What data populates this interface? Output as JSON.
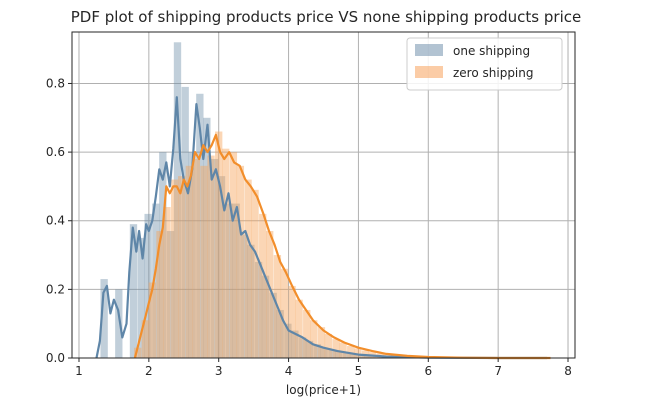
{
  "chart_data": {
    "type": "histogram",
    "title": "PDF plot of shipping products price VS none shipping products price",
    "xlabel": "log(price+1)",
    "ylabel": "",
    "xlim": [
      0.9,
      8.1
    ],
    "ylim": [
      0,
      0.95
    ],
    "x_ticks": [
      {
        "value": 1,
        "label": "1"
      },
      {
        "value": 2,
        "label": "2"
      },
      {
        "value": 3,
        "label": "3"
      },
      {
        "value": 4,
        "label": "4"
      },
      {
        "value": 5,
        "label": "5"
      },
      {
        "value": 6,
        "label": "6"
      },
      {
        "value": 7,
        "label": "7"
      },
      {
        "value": 8,
        "label": "8"
      }
    ],
    "y_ticks": [
      {
        "value": 0.0,
        "label": "0.0"
      },
      {
        "value": 0.2,
        "label": "0.2"
      },
      {
        "value": 0.4,
        "label": "0.4"
      },
      {
        "value": 0.6,
        "label": "0.6"
      },
      {
        "value": 0.8,
        "label": "0.8"
      }
    ],
    "grid": true,
    "legend_position": "top-right",
    "bin_width": 0.105,
    "series": [
      {
        "name": "one shipping",
        "color": "#6c8ca8",
        "fill_opacity": 0.42,
        "kde_color": "#5f86a8",
        "bins": [
          [
            1.36,
            0.23
          ],
          [
            1.47,
            0.0
          ],
          [
            1.57,
            0.2
          ],
          [
            1.67,
            0.0
          ],
          [
            1.78,
            0.39
          ],
          [
            1.89,
            0.35
          ],
          [
            1.99,
            0.42
          ],
          [
            2.1,
            0.45
          ],
          [
            2.2,
            0.6
          ],
          [
            2.31,
            0.37
          ],
          [
            2.41,
            0.92
          ],
          [
            2.52,
            0.79
          ],
          [
            2.62,
            0.6
          ],
          [
            2.73,
            0.77
          ],
          [
            2.83,
            0.7
          ],
          [
            2.94,
            0.58
          ],
          [
            3.04,
            0.53
          ],
          [
            3.15,
            0.45
          ],
          [
            3.25,
            0.45
          ],
          [
            3.36,
            0.36
          ],
          [
            3.46,
            0.33
          ],
          [
            3.57,
            0.28
          ],
          [
            3.67,
            0.24
          ],
          [
            3.78,
            0.19
          ],
          [
            3.88,
            0.14
          ],
          [
            3.99,
            0.1
          ],
          [
            4.09,
            0.08
          ],
          [
            4.2,
            0.06
          ],
          [
            4.3,
            0.05
          ],
          [
            4.41,
            0.04
          ],
          [
            4.51,
            0.03
          ],
          [
            4.62,
            0.025
          ],
          [
            4.72,
            0.02
          ],
          [
            4.83,
            0.015
          ],
          [
            4.93,
            0.012
          ],
          [
            5.04,
            0.01
          ],
          [
            5.14,
            0.008
          ],
          [
            5.25,
            0.006
          ],
          [
            5.35,
            0.005
          ],
          [
            5.46,
            0.004
          ],
          [
            5.56,
            0.003
          ],
          [
            5.67,
            0.002
          ],
          [
            5.77,
            0.002
          ],
          [
            5.88,
            0.001
          ]
        ],
        "kde": [
          [
            1.25,
            0.0
          ],
          [
            1.3,
            0.05
          ],
          [
            1.35,
            0.19
          ],
          [
            1.4,
            0.21
          ],
          [
            1.45,
            0.13
          ],
          [
            1.5,
            0.17
          ],
          [
            1.56,
            0.14
          ],
          [
            1.62,
            0.06
          ],
          [
            1.68,
            0.1
          ],
          [
            1.72,
            0.25
          ],
          [
            1.77,
            0.38
          ],
          [
            1.82,
            0.31
          ],
          [
            1.86,
            0.37
          ],
          [
            1.91,
            0.29
          ],
          [
            1.96,
            0.39
          ],
          [
            2.0,
            0.37
          ],
          [
            2.05,
            0.4
          ],
          [
            2.1,
            0.47
          ],
          [
            2.15,
            0.55
          ],
          [
            2.2,
            0.52
          ],
          [
            2.25,
            0.57
          ],
          [
            2.3,
            0.5
          ],
          [
            2.35,
            0.61
          ],
          [
            2.4,
            0.76
          ],
          [
            2.45,
            0.58
          ],
          [
            2.5,
            0.52
          ],
          [
            2.56,
            0.48
          ],
          [
            2.62,
            0.55
          ],
          [
            2.68,
            0.74
          ],
          [
            2.73,
            0.67
          ],
          [
            2.78,
            0.58
          ],
          [
            2.84,
            0.68
          ],
          [
            2.9,
            0.52
          ],
          [
            2.96,
            0.55
          ],
          [
            3.02,
            0.5
          ],
          [
            3.08,
            0.43
          ],
          [
            3.14,
            0.48
          ],
          [
            3.2,
            0.4
          ],
          [
            3.26,
            0.44
          ],
          [
            3.32,
            0.36
          ],
          [
            3.38,
            0.37
          ],
          [
            3.45,
            0.33
          ],
          [
            3.52,
            0.31
          ],
          [
            3.6,
            0.27
          ],
          [
            3.68,
            0.23
          ],
          [
            3.76,
            0.19
          ],
          [
            3.84,
            0.15
          ],
          [
            3.92,
            0.11
          ],
          [
            4.0,
            0.08
          ],
          [
            4.1,
            0.07
          ],
          [
            4.2,
            0.06
          ],
          [
            4.35,
            0.04
          ],
          [
            4.5,
            0.03
          ],
          [
            4.7,
            0.02
          ],
          [
            5.0,
            0.01
          ],
          [
            5.4,
            0.004
          ],
          [
            6.0,
            0.001
          ],
          [
            7.0,
            0.0
          ],
          [
            7.7,
            0.0
          ]
        ]
      },
      {
        "name": "zero shipping",
        "color": "#f7a35c",
        "fill_opacity": 0.45,
        "kde_color": "#f28e2b",
        "bins": [
          [
            1.84,
            0.03
          ],
          [
            1.95,
            0.11
          ],
          [
            2.05,
            0.22
          ],
          [
            2.16,
            0.37
          ],
          [
            2.26,
            0.44
          ],
          [
            2.37,
            0.52
          ],
          [
            2.47,
            0.53
          ],
          [
            2.58,
            0.56
          ],
          [
            2.68,
            0.58
          ],
          [
            2.79,
            0.56
          ],
          [
            2.89,
            0.59
          ],
          [
            3.0,
            0.66
          ],
          [
            3.1,
            0.61
          ],
          [
            3.21,
            0.6
          ],
          [
            3.31,
            0.56
          ],
          [
            3.42,
            0.52
          ],
          [
            3.52,
            0.49
          ],
          [
            3.63,
            0.42
          ],
          [
            3.73,
            0.37
          ],
          [
            3.84,
            0.3
          ],
          [
            3.94,
            0.26
          ],
          [
            4.05,
            0.21
          ],
          [
            4.15,
            0.17
          ],
          [
            4.26,
            0.14
          ],
          [
            4.36,
            0.11
          ],
          [
            4.47,
            0.09
          ],
          [
            4.57,
            0.07
          ],
          [
            4.68,
            0.055
          ],
          [
            4.78,
            0.045
          ],
          [
            4.89,
            0.035
          ],
          [
            4.99,
            0.028
          ],
          [
            5.1,
            0.022
          ],
          [
            5.2,
            0.017
          ],
          [
            5.31,
            0.013
          ],
          [
            5.41,
            0.01
          ],
          [
            5.52,
            0.008
          ],
          [
            5.62,
            0.006
          ],
          [
            5.73,
            0.005
          ],
          [
            5.83,
            0.004
          ],
          [
            5.94,
            0.003
          ],
          [
            6.04,
            0.002
          ],
          [
            6.15,
            0.002
          ],
          [
            6.25,
            0.001
          ],
          [
            6.36,
            0.001
          ],
          [
            6.46,
            0.001
          ]
        ],
        "kde": [
          [
            1.8,
            0.0
          ],
          [
            1.85,
            0.04
          ],
          [
            1.9,
            0.08
          ],
          [
            1.95,
            0.12
          ],
          [
            2.0,
            0.16
          ],
          [
            2.05,
            0.2
          ],
          [
            2.1,
            0.26
          ],
          [
            2.15,
            0.33
          ],
          [
            2.2,
            0.38
          ],
          [
            2.25,
            0.5
          ],
          [
            2.3,
            0.48
          ],
          [
            2.35,
            0.5
          ],
          [
            2.4,
            0.5
          ],
          [
            2.45,
            0.48
          ],
          [
            2.5,
            0.52
          ],
          [
            2.55,
            0.5
          ],
          [
            2.6,
            0.53
          ],
          [
            2.66,
            0.6
          ],
          [
            2.72,
            0.58
          ],
          [
            2.78,
            0.62
          ],
          [
            2.84,
            0.6
          ],
          [
            2.9,
            0.62
          ],
          [
            2.96,
            0.65
          ],
          [
            3.02,
            0.6
          ],
          [
            3.08,
            0.58
          ],
          [
            3.15,
            0.6
          ],
          [
            3.22,
            0.57
          ],
          [
            3.3,
            0.56
          ],
          [
            3.38,
            0.52
          ],
          [
            3.46,
            0.5
          ],
          [
            3.55,
            0.47
          ],
          [
            3.64,
            0.42
          ],
          [
            3.72,
            0.37
          ],
          [
            3.8,
            0.33
          ],
          [
            3.88,
            0.28
          ],
          [
            3.96,
            0.25
          ],
          [
            4.05,
            0.21
          ],
          [
            4.15,
            0.17
          ],
          [
            4.25,
            0.14
          ],
          [
            4.35,
            0.11
          ],
          [
            4.5,
            0.08
          ],
          [
            4.65,
            0.06
          ],
          [
            4.8,
            0.045
          ],
          [
            5.0,
            0.03
          ],
          [
            5.2,
            0.02
          ],
          [
            5.4,
            0.012
          ],
          [
            5.7,
            0.006
          ],
          [
            6.0,
            0.003
          ],
          [
            6.5,
            0.001
          ],
          [
            7.0,
            0.0
          ],
          [
            7.75,
            0.0
          ]
        ]
      }
    ]
  }
}
